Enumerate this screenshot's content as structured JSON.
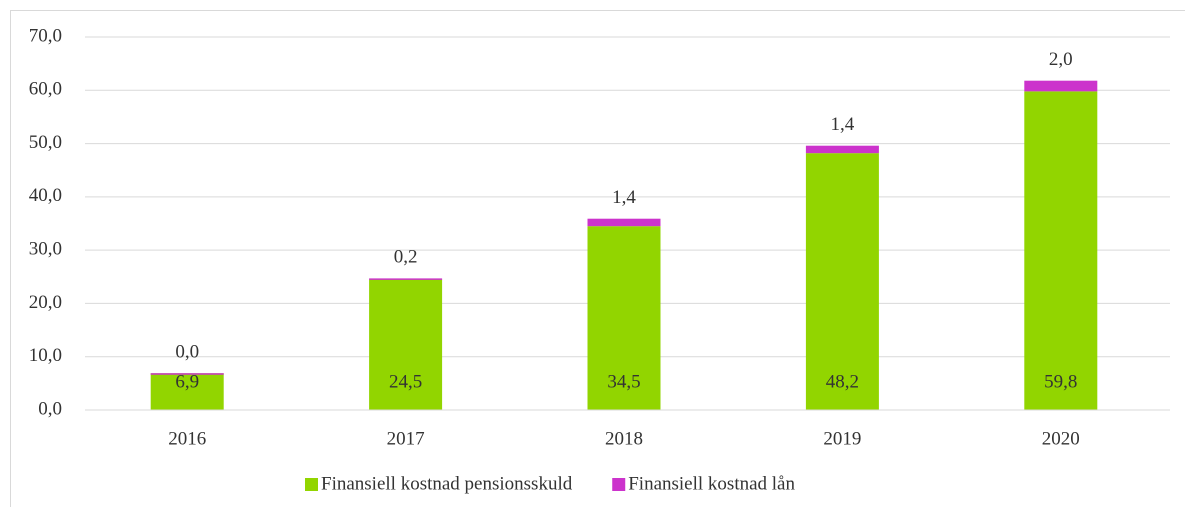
{
  "chart_data": {
    "type": "stacked_bar",
    "categories": [
      "2016",
      "2017",
      "2018",
      "2019",
      "2020"
    ],
    "series": [
      {
        "name": "Finansiell kostnad pensionsskuld",
        "color": "#92d500",
        "values": [
          6.9,
          24.5,
          34.5,
          48.2,
          59.8
        ],
        "value_labels": [
          "6,9",
          "24,5",
          "34,5",
          "48,2",
          "59,8"
        ]
      },
      {
        "name": "Finansiell kostnad lån",
        "color": "#cc33cc",
        "values": [
          0.0,
          0.2,
          1.4,
          1.4,
          2.0
        ],
        "value_labels": [
          "0,0",
          "0,2",
          "1,4",
          "1,4",
          "2,0"
        ]
      }
    ],
    "ylim": [
      0,
      70
    ],
    "yticks": [
      {
        "value": 0,
        "label": "0,0"
      },
      {
        "value": 10,
        "label": "10,0"
      },
      {
        "value": 20,
        "label": "20,0"
      },
      {
        "value": 30,
        "label": "30,0"
      },
      {
        "value": 40,
        "label": "40,0"
      },
      {
        "value": 50,
        "label": "50,0"
      },
      {
        "value": 60,
        "label": "60,0"
      },
      {
        "value": 70,
        "label": "70,0"
      }
    ],
    "grid": true,
    "legend": "bottom"
  }
}
